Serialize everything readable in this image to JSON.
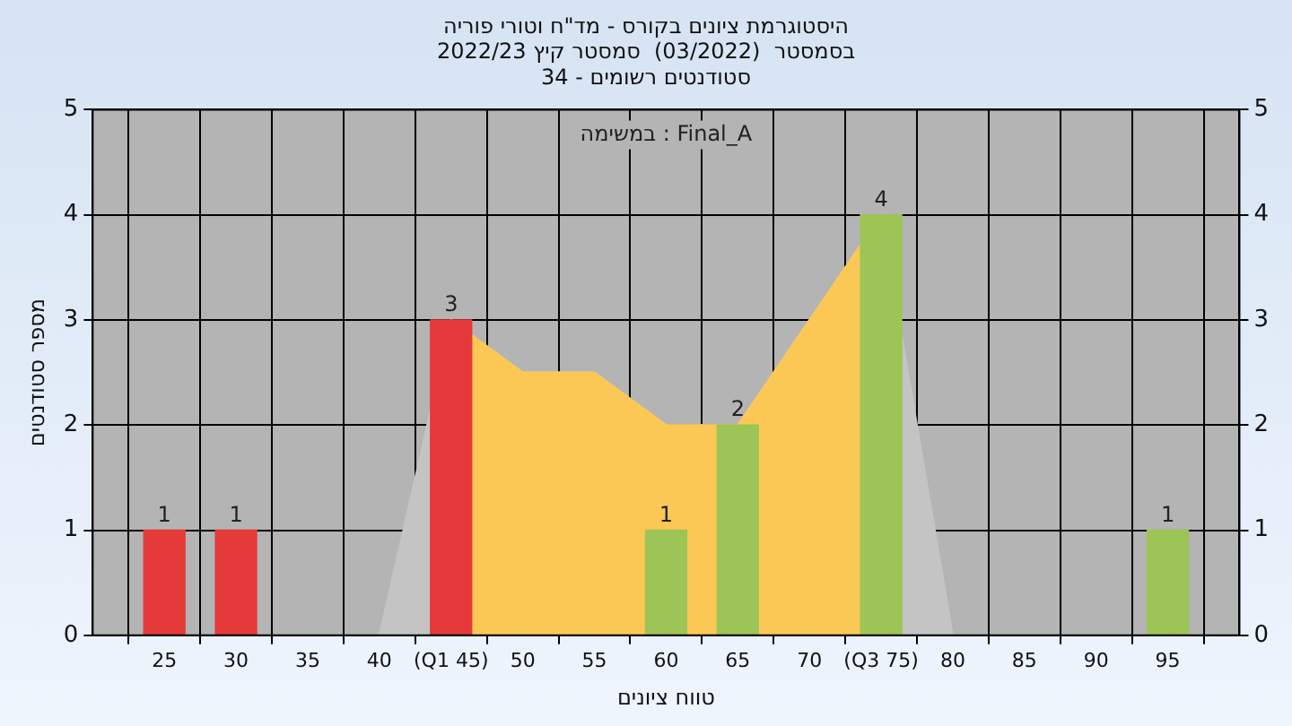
{
  "chart_data": {
    "type": "bar",
    "title": "היסטוגרמת ציונים בקורס - מד\"ח וטורי פוריה",
    "subtitle": "בסמסטר  (03/2022)  סמסטר קיץ 2022/23\nסטודנטים רשומים - 34",
    "xlabel": "טווח ציונים",
    "ylabel": "מספר סטודנטים",
    "annotations": [
      "במשימה : Final_A"
    ],
    "xlim": [
      20,
      100
    ],
    "xticks": [
      25,
      30,
      35,
      40,
      {
        "value": 45,
        "label": "(Q1 45)"
      },
      50,
      55,
      60,
      65,
      70,
      {
        "value": 75,
        "label": "(Q3 75)"
      },
      80,
      85,
      90,
      95
    ],
    "ylim": [
      0,
      5
    ],
    "yticks": [
      0,
      1,
      2,
      3,
      4,
      5
    ],
    "y2lim": [
      0,
      5
    ],
    "y2ticks": [
      0,
      1,
      2,
      3,
      4,
      5
    ],
    "grid": true,
    "series": [
      {
        "type": "area",
        "color": "#c4c4c4",
        "x": [
          40,
          45,
          50,
          55,
          60,
          65,
          70,
          75,
          80
        ],
        "values": [
          0,
          3,
          2.5,
          2.5,
          2,
          2,
          3,
          4,
          0
        ]
      },
      {
        "type": "area",
        "color": "#fcc855",
        "x": [
          45,
          50,
          55,
          60,
          65,
          70,
          75
        ],
        "values": [
          3,
          2.5,
          2.5,
          2,
          2,
          3,
          4
        ]
      },
      {
        "x": [
          25,
          30,
          45,
          60,
          65,
          75,
          95
        ],
        "values": [
          1,
          1,
          3,
          1,
          2,
          4,
          1
        ],
        "colors": [
          "#e43a3a",
          "#e43a3a",
          "#e43a3a",
          "#9cc456",
          "#9cc456",
          "#9cc456",
          "#9cc456"
        ],
        "value_labels": [
          "1",
          "1",
          "3",
          "1",
          "2",
          "4",
          "1"
        ]
      }
    ]
  }
}
